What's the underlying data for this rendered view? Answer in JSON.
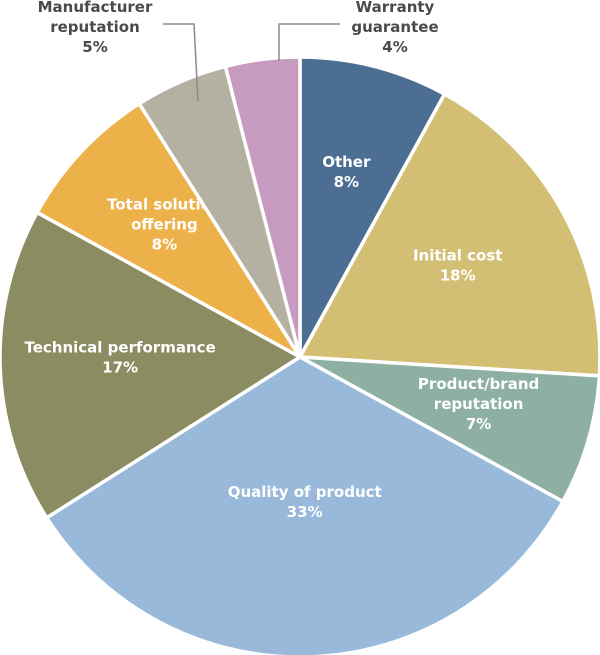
{
  "chart_data": {
    "type": "pie",
    "title": "",
    "start": "12 o'clock",
    "direction": "clockwise",
    "slices": [
      {
        "label": "Other",
        "display_label": [
          "Other"
        ],
        "value": 8,
        "value_label": "8%",
        "color": "#4d6e93",
        "label_color": "#ffffff",
        "label_placement": "inside"
      },
      {
        "label": "Initial cost",
        "display_label": [
          "Initial cost"
        ],
        "value": 18,
        "value_label": "18%",
        "color": "#d3bf73",
        "label_color": "#ffffff",
        "label_placement": "inside"
      },
      {
        "label": "Product/brand reputation",
        "display_label": [
          "Product/brand",
          "reputation"
        ],
        "value": 7,
        "value_label": "7%",
        "color": "#8db0a3",
        "label_color": "#ffffff",
        "label_placement": "inside"
      },
      {
        "label": "Quality of product",
        "display_label": [
          "Quality of product"
        ],
        "value": 33,
        "value_label": "33%",
        "color": "#98b9d9",
        "label_color": "#ffffff",
        "label_placement": "inside"
      },
      {
        "label": "Technical performance",
        "display_label": [
          "Technical performance"
        ],
        "value": 17,
        "value_label": "17%",
        "color": "#8c8c63",
        "label_color": "#ffffff",
        "label_placement": "inside"
      },
      {
        "label": "Total solution offering",
        "display_label": [
          "Total solution",
          "offering"
        ],
        "value": 8,
        "value_label": "8%",
        "color": "#edb14a",
        "label_color": "#ffffff",
        "label_placement": "inside"
      },
      {
        "label": "Manufacturer reputation",
        "display_label": [
          "Manufacturer",
          "reputation"
        ],
        "value": 5,
        "value_label": "5%",
        "color": "#b5b1a2",
        "label_color": "#4a4a4a",
        "label_placement": "outside-left"
      },
      {
        "label": "Warranty guarantee",
        "display_label": [
          "Warranty",
          "guarantee"
        ],
        "value": 4,
        "value_label": "4%",
        "color": "#c79abf",
        "label_color": "#4a4a4a",
        "label_placement": "outside-right"
      }
    ]
  }
}
